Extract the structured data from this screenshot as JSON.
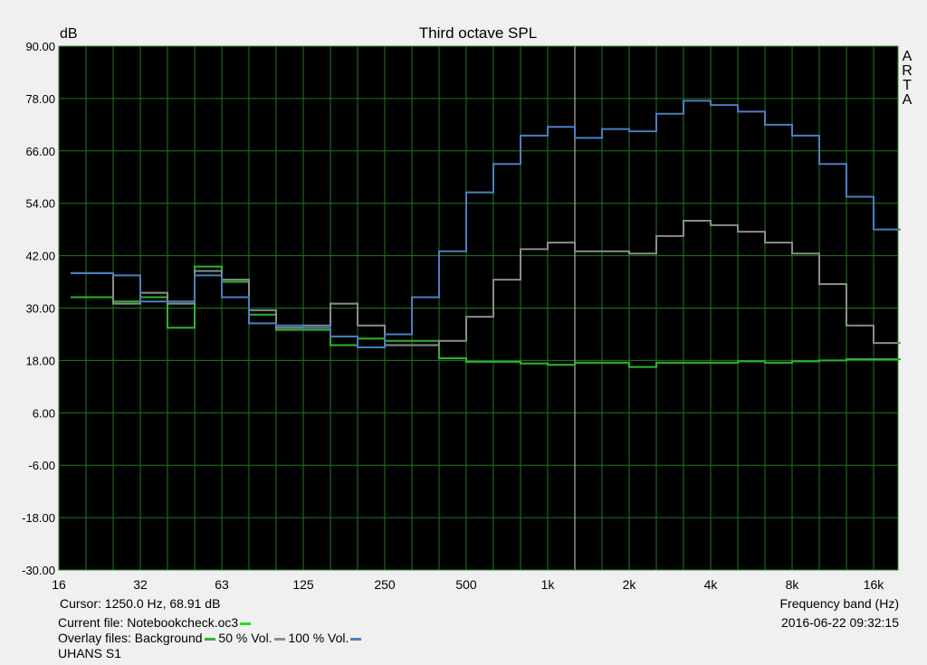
{
  "chart_data": {
    "type": "line",
    "title": "Third octave SPL",
    "ylabel": "dB",
    "xlabel": "Frequency band (Hz)",
    "side_label": "ARTA",
    "ylim": [
      -30,
      90
    ],
    "y_ticks": [
      "90.00",
      "78.00",
      "66.00",
      "54.00",
      "42.00",
      "30.00",
      "18.00",
      "6.00",
      "-6.00",
      "-18.00",
      "-30.00"
    ],
    "x_ticks": [
      "16",
      "32",
      "63",
      "125",
      "250",
      "500",
      "1k",
      "2k",
      "4k",
      "8k",
      "16k"
    ],
    "x_bands": [
      "16",
      "20",
      "25",
      "31.5",
      "40",
      "50",
      "63",
      "80",
      "100",
      "125",
      "160",
      "200",
      "250",
      "315",
      "400",
      "500",
      "630",
      "800",
      "1k",
      "1.25k",
      "1.6k",
      "2k",
      "2.5k",
      "3.15k",
      "4k",
      "5k",
      "6.3k",
      "8k",
      "10k",
      "12.5k",
      "16k",
      "20k"
    ],
    "grid": true,
    "cursor_band": "1.25k",
    "series": [
      {
        "name": "Background",
        "color": "#2db52d",
        "values": [
          32.5,
          32.5,
          31.5,
          32.5,
          25.5,
          39.5,
          36,
          28.5,
          25,
          25,
          21.5,
          23,
          22.5,
          22.5,
          18.5,
          17.7,
          17.7,
          17.3,
          17,
          17.5,
          17.5,
          16.5,
          17.5,
          17.5,
          17.5,
          17.8,
          17.5,
          17.8,
          18,
          18.3,
          18.3,
          18.3
        ]
      },
      {
        "name": "50 % Vol.",
        "color": "#8c8c8c",
        "values": [
          38,
          38,
          31,
          33.5,
          31,
          38.5,
          36.5,
          29.5,
          25.5,
          26,
          31,
          26,
          21.5,
          21.5,
          22.5,
          28,
          36.5,
          43.5,
          45,
          43,
          43,
          42.5,
          46.5,
          50,
          49,
          47.5,
          45,
          42.5,
          35.5,
          26,
          22,
          22
        ]
      },
      {
        "name": "100 % Vol.",
        "color": "#4a7fc1",
        "values": [
          38,
          38,
          37.5,
          31.5,
          31.5,
          37.5,
          32.5,
          26.5,
          26,
          25.5,
          23.5,
          21,
          24,
          32.5,
          43,
          56.5,
          63,
          69.5,
          71.5,
          69,
          71,
          70.5,
          74.5,
          77.5,
          76.5,
          75,
          72,
          69.5,
          63,
          55.5,
          48,
          48
        ]
      }
    ]
  },
  "footer": {
    "cursor_text": "Cursor:  1250.0 Hz, 68.91 dB",
    "current_file_text": "Current file: Notebookcheck.oc3",
    "current_file_color": "#22dd22",
    "overlay_prefix": "Overlay files: Background",
    "overlay_50": "50 % Vol.",
    "overlay_100": "100 % Vol.",
    "device": "UHANS S1",
    "date": "2016-06-22  09:32:15"
  }
}
